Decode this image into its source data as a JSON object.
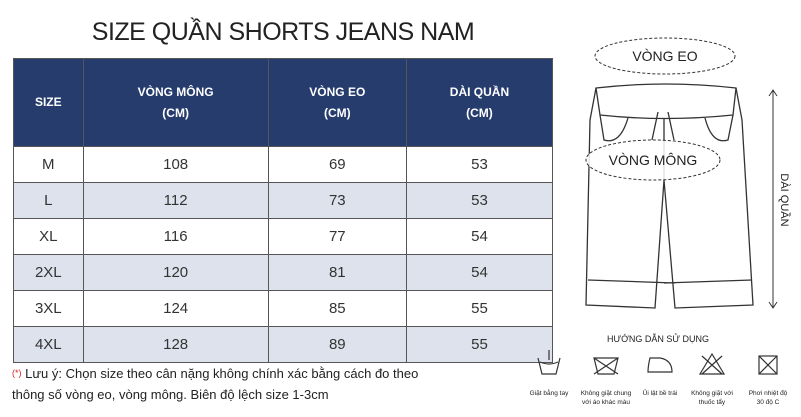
{
  "title": "SIZE QUẦN SHORTS JEANS NAM",
  "table": {
    "headers": [
      [
        "SIZE"
      ],
      [
        "VÒNG MÔNG",
        "(CM)"
      ],
      [
        "VÒNG EO",
        "(CM)"
      ],
      [
        "DÀI QUẦN",
        "(CM)"
      ]
    ],
    "rows": [
      [
        "M",
        108,
        69,
        53
      ],
      [
        "L",
        112,
        73,
        53
      ],
      [
        "XL",
        116,
        77,
        54
      ],
      [
        "2XL",
        120,
        81,
        54
      ],
      [
        "3XL",
        124,
        85,
        55
      ],
      [
        "4XL",
        128,
        89,
        55
      ]
    ]
  },
  "diagram": {
    "waist": "VÒNG EO",
    "hip": "VÒNG MÔNG",
    "length": "DÀI QUẦN"
  },
  "care": {
    "title": "HƯỚNG DẪN SỬ DỤNG",
    "items": [
      [
        "Giặt bằng tay"
      ],
      [
        "Không giặt chung",
        "với áo khác màu"
      ],
      [
        "Ủi lật bề trái"
      ],
      [
        "Không giặt với",
        "thuốc tẩy"
      ],
      [
        "Phơi nhiệt độ",
        "30 độ C"
      ]
    ]
  },
  "note": {
    "marker": "(*)",
    "lines": [
      "Lưu ý: Chọn size theo cân nặng không chính xác bằng cách đo theo",
      "thông số vòng eo, vòng mông. Biên độ lệch size 1-3cm"
    ]
  }
}
